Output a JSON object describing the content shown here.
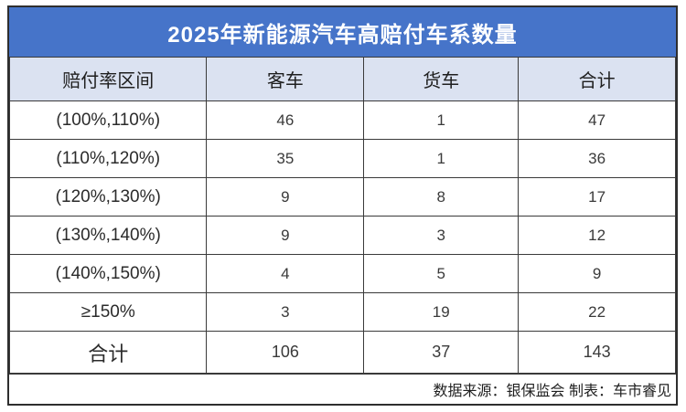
{
  "chart_data": {
    "type": "table",
    "title": "2025年新能源汽车高赔付车系数量",
    "columns": [
      "赔付率区间",
      "客车",
      "货车",
      "合计"
    ],
    "rows": [
      [
        "(100%,110%)",
        "46",
        "1",
        "47"
      ],
      [
        "(110%,120%)",
        "35",
        "1",
        "36"
      ],
      [
        "(120%,130%)",
        "9",
        "8",
        "17"
      ],
      [
        "(130%,140%)",
        "9",
        "3",
        "12"
      ],
      [
        "(140%,150%)",
        "4",
        "5",
        "9"
      ],
      [
        "≥150%",
        "3",
        "19",
        "22"
      ]
    ],
    "total_row": [
      "合计",
      "106",
      "37",
      "143"
    ],
    "footer": "数据来源：银保监会 制表：车市睿见"
  },
  "colors": {
    "title_bg": "#4674C9",
    "title_text": "#FFFFFF",
    "header_bg": "#DBE2F1",
    "border": "#3A3A3A",
    "cell_text": "#262626"
  }
}
